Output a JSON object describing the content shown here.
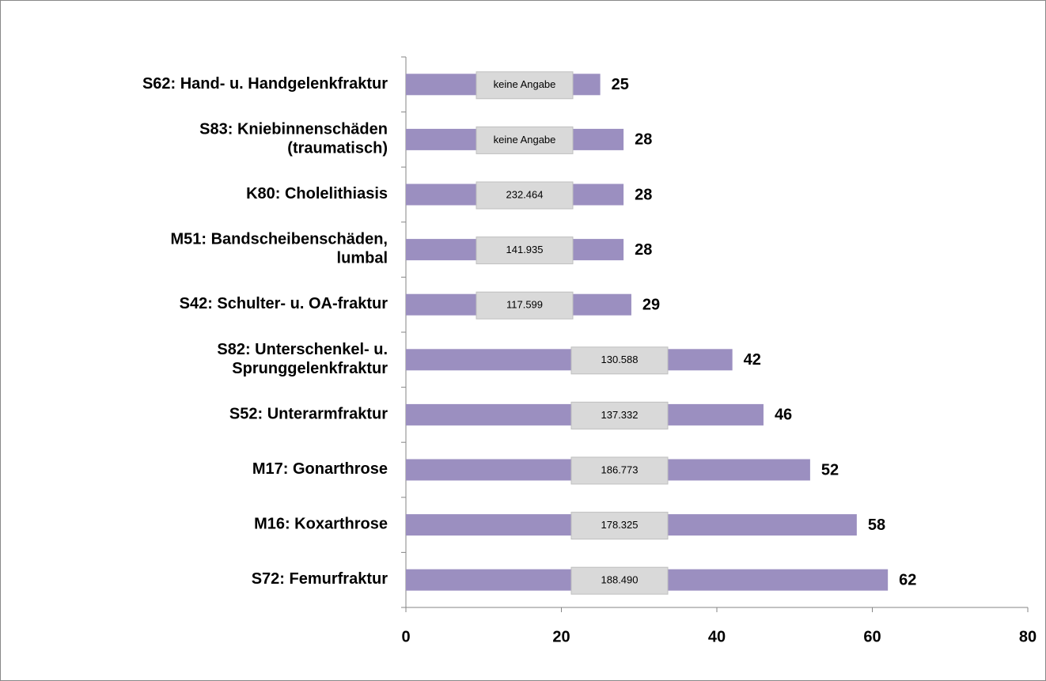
{
  "chart_data": {
    "type": "bar",
    "orientation": "horizontal",
    "categories": [
      "S62: Hand- u. Handgelenkfraktur",
      "S83: Kniebinnenschäden\n(traumatisch)",
      "K80: Cholelithiasis",
      "M51: Bandscheibenschäden,\nlumbal",
      "S42: Schulter- u. OA-fraktur",
      "S82: Unterschenkel- u.\nSprunggelenkfraktur",
      "S52: Unterarmfraktur",
      "M17: Gonarthrose",
      "M16: Koxarthrose",
      "S72: Femurfraktur"
    ],
    "values": [
      25,
      28,
      28,
      28,
      29,
      42,
      46,
      52,
      58,
      62
    ],
    "annotations": [
      "keine Angabe",
      "keine Angabe",
      "232.464",
      "141.935",
      "117.599",
      "130.588",
      "137.332",
      "186.773",
      "178.325",
      "188.490"
    ],
    "color": "#9b8fc0",
    "xlim": [
      0,
      80
    ],
    "xticks": [
      0,
      20,
      40,
      60,
      80
    ]
  }
}
